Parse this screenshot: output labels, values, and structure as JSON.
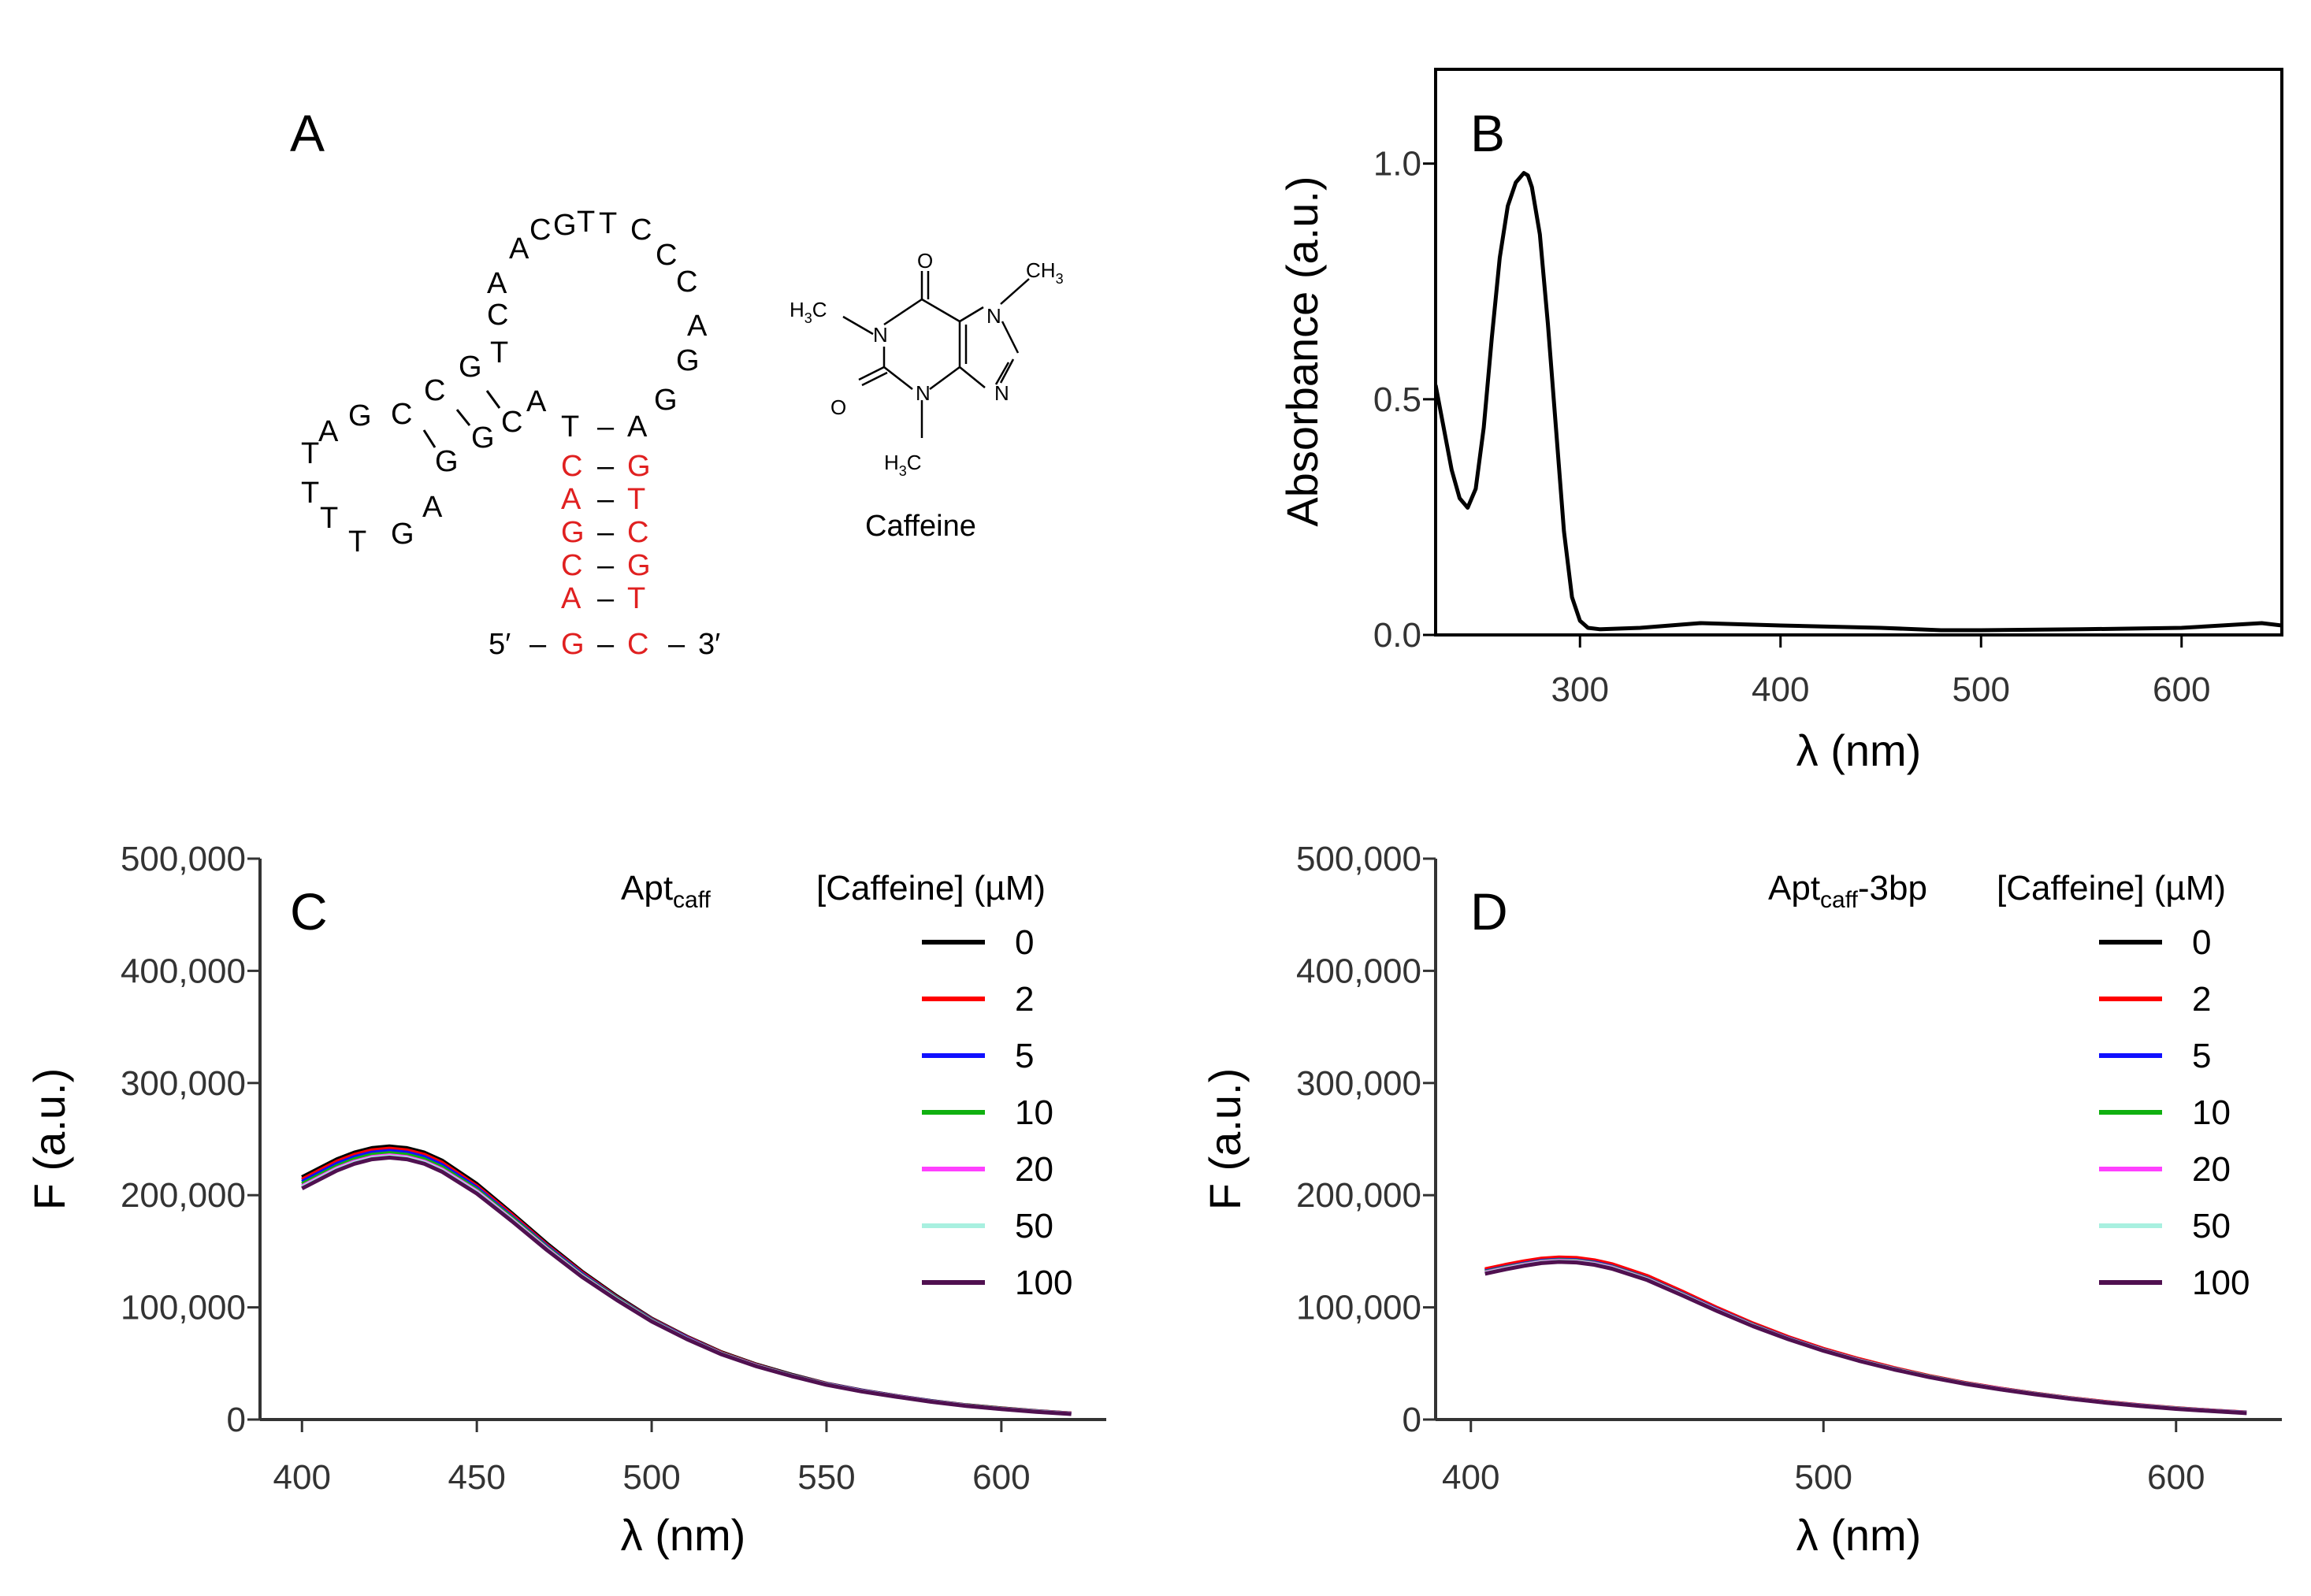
{
  "panel_labels": {
    "a": "A",
    "b": "B",
    "c": "C",
    "d": "D"
  },
  "structure": {
    "five_prime": "5′",
    "three_prime": "3′",
    "caffeine_label": "Caffeine",
    "dash": "–",
    "stem_left": [
      "T",
      "C",
      "A",
      "G",
      "C",
      "A",
      "G"
    ],
    "stem_right": [
      "A",
      "G",
      "T",
      "C",
      "G",
      "T",
      "C"
    ],
    "loop_top": [
      "A",
      "C",
      "A",
      "C",
      "G",
      "T",
      "T",
      "C",
      "C",
      "C",
      "A",
      "G",
      "G"
    ],
    "left_arm": [
      "T",
      "G",
      "C",
      "C",
      "G",
      "G",
      "C",
      "A"
    ],
    "left_loop": [
      "A",
      "G",
      "T",
      "T",
      "T",
      "T",
      "G",
      "A"
    ],
    "colors": {
      "stem": "#e02020",
      "loop": "#000000"
    }
  },
  "caffeine": {
    "atoms": {
      "n1": "N",
      "n3": "N",
      "n7": "N",
      "n9": "N",
      "o2": "O",
      "o6": "O"
    },
    "h3c_left": {
      "h": "H",
      "sub": "3",
      "c": "C"
    },
    "h3c_bottom": {
      "h": "H",
      "sub": "3",
      "c": "C"
    },
    "ch3_top": {
      "c": "CH",
      "sub": "3"
    }
  },
  "chart_data": [
    {
      "id": "B",
      "type": "line",
      "xlabel": "λ (nm)",
      "ylabel": "Absorbance (a.u.)",
      "xlim": [
        228,
        650
      ],
      "ylim": [
        0,
        1.2
      ],
      "xticks": [
        300,
        400,
        500,
        600
      ],
      "yticks": [
        0.0,
        0.5,
        1.0
      ],
      "ytick_labels": [
        "0.0",
        "0.5",
        "1.0"
      ],
      "series": [
        {
          "name": "Absorbance",
          "color": "#000000",
          "x": [
            228,
            232,
            236,
            240,
            244,
            248,
            252,
            256,
            260,
            264,
            268,
            272,
            274,
            276,
            280,
            284,
            288,
            292,
            296,
            300,
            304,
            310,
            330,
            360,
            400,
            450,
            480,
            500,
            550,
            600,
            640,
            650
          ],
          "y": [
            0.53,
            0.44,
            0.35,
            0.29,
            0.27,
            0.31,
            0.44,
            0.63,
            0.8,
            0.91,
            0.96,
            0.98,
            0.975,
            0.95,
            0.85,
            0.66,
            0.44,
            0.22,
            0.08,
            0.03,
            0.015,
            0.012,
            0.015,
            0.025,
            0.02,
            0.015,
            0.01,
            0.01,
            0.012,
            0.015,
            0.025,
            0.02
          ]
        }
      ]
    },
    {
      "id": "C",
      "type": "line",
      "xlabel": "λ (nm)",
      "ylabel": "F (a.u.)",
      "xlim": [
        388,
        630
      ],
      "ylim": [
        0,
        500000
      ],
      "xticks": [
        400,
        450,
        500,
        550,
        600
      ],
      "yticks": [
        0,
        100000,
        200000,
        300000,
        400000,
        500000
      ],
      "ytick_labels": [
        "0",
        "100,000",
        "200,000",
        "300,000",
        "400,000",
        "500,000"
      ],
      "annotation": {
        "main": "Apt",
        "sub": "caff",
        "suffix": ""
      },
      "legend_title": "[Caffeine] (µM)",
      "x": [
        400,
        405,
        410,
        415,
        420,
        425,
        430,
        435,
        440,
        450,
        460,
        470,
        480,
        490,
        500,
        510,
        520,
        530,
        540,
        550,
        560,
        570,
        580,
        590,
        600,
        610,
        620
      ],
      "series": [
        {
          "name": "0",
          "color": "#000000",
          "values": [
            216000,
            224000,
            232000,
            238000,
            242000,
            243500,
            242000,
            238000,
            231000,
            210000,
            184000,
            157000,
            132000,
            110000,
            90000,
            74000,
            60000,
            49000,
            40000,
            32000,
            26000,
            21000,
            16500,
            12800,
            10000,
            7500,
            5500
          ]
        },
        {
          "name": "2",
          "color": "#ff0000",
          "values": [
            214000,
            222000,
            230000,
            236000,
            240000,
            241500,
            240000,
            236000,
            229000,
            208000,
            182500,
            155500,
            131000,
            109000,
            89500,
            73500,
            59500,
            48500,
            39500,
            31800,
            25800,
            20800,
            16300,
            12600,
            9800,
            7400,
            5400
          ]
        },
        {
          "name": "5",
          "color": "#1010ff",
          "values": [
            212000,
            220000,
            228000,
            234000,
            238000,
            239500,
            238000,
            234000,
            227000,
            206500,
            181000,
            154500,
            130000,
            108500,
            89000,
            73000,
            59000,
            48200,
            39300,
            31600,
            25600,
            20700,
            16200,
            12500,
            9700,
            7300,
            5300
          ]
        },
        {
          "name": "10",
          "color": "#10b010",
          "values": [
            210000,
            218000,
            226000,
            232000,
            236000,
            237500,
            236000,
            232000,
            225000,
            205000,
            180000,
            153500,
            129000,
            108000,
            88500,
            72500,
            58800,
            48000,
            39100,
            31400,
            25400,
            20600,
            16100,
            12400,
            9600,
            7200,
            5200
          ]
        },
        {
          "name": "20",
          "color": "#ff40ff",
          "values": [
            208000,
            216000,
            224000,
            230000,
            234000,
            235500,
            234000,
            230000,
            223000,
            203500,
            178500,
            152500,
            128300,
            107300,
            88000,
            72200,
            58500,
            47800,
            38900,
            31200,
            25300,
            20500,
            16000,
            12300,
            9500,
            7100,
            5100
          ]
        },
        {
          "name": "50",
          "color": "#a8f0e0",
          "values": [
            207000,
            215000,
            223000,
            229000,
            233000,
            234500,
            233000,
            229000,
            222000,
            202500,
            177800,
            151800,
            127800,
            107000,
            87700,
            72000,
            58300,
            47600,
            38800,
            31100,
            25200,
            20400,
            15900,
            12200,
            9400,
            7000,
            5000
          ]
        },
        {
          "name": "100",
          "color": "#501050",
          "values": [
            206000,
            214000,
            222000,
            228000,
            232000,
            233500,
            232000,
            228000,
            221000,
            201500,
            177000,
            151200,
            127300,
            106600,
            87400,
            71800,
            58100,
            47400,
            38700,
            31000,
            25100,
            20300,
            15800,
            12100,
            9300,
            6900,
            4900
          ]
        }
      ]
    },
    {
      "id": "D",
      "type": "line",
      "xlabel": "λ (nm)",
      "ylabel": "F (a.u.)",
      "xlim": [
        390,
        630
      ],
      "ylim": [
        0,
        500000
      ],
      "xticks": [
        400,
        500,
        600
      ],
      "yticks": [
        0,
        100000,
        200000,
        300000,
        400000,
        500000
      ],
      "ytick_labels": [
        "0",
        "100,000",
        "200,000",
        "300,000",
        "400,000",
        "500,000"
      ],
      "annotation": {
        "main": "Apt",
        "sub": "caff",
        "suffix": "-3bp"
      },
      "legend_title": "[Caffeine] (µM)",
      "x": [
        404,
        410,
        415,
        420,
        425,
        430,
        435,
        440,
        450,
        460,
        470,
        480,
        490,
        500,
        510,
        520,
        530,
        540,
        550,
        560,
        570,
        580,
        590,
        600,
        610,
        620
      ],
      "series": [
        {
          "name": "0",
          "color": "#000000",
          "values": [
            133000,
            137000,
            140000,
            142500,
            143500,
            143000,
            141000,
            137500,
            127000,
            113000,
            98500,
            85000,
            73000,
            62500,
            53500,
            45500,
            38500,
            32500,
            27500,
            23000,
            19000,
            15500,
            12500,
            10000,
            8000,
            6200
          ]
        },
        {
          "name": "2",
          "color": "#ff0000",
          "values": [
            134000,
            138000,
            141000,
            143500,
            144500,
            144000,
            142000,
            138500,
            128000,
            114000,
            99300,
            85700,
            73600,
            63000,
            54000,
            45900,
            38800,
            32800,
            27700,
            23200,
            19200,
            15700,
            12700,
            10200,
            8100,
            6300
          ]
        },
        {
          "name": "5",
          "color": "#1010ff",
          "values": [
            132000,
            136000,
            139000,
            141500,
            142500,
            142000,
            140000,
            136500,
            126000,
            112200,
            97800,
            84400,
            72500,
            62100,
            53100,
            45200,
            38300,
            32300,
            27300,
            22900,
            18900,
            15400,
            12400,
            9900,
            7900,
            6100
          ]
        },
        {
          "name": "10",
          "color": "#10b010",
          "values": [
            131500,
            135500,
            138500,
            141000,
            142000,
            141500,
            139500,
            136000,
            125600,
            111800,
            97400,
            84100,
            72200,
            61900,
            53000,
            45100,
            38200,
            32200,
            27200,
            22800,
            18800,
            15300,
            12300,
            9800,
            7800,
            6000
          ]
        },
        {
          "name": "20",
          "color": "#ff40ff",
          "values": [
            131000,
            135000,
            138000,
            140500,
            141500,
            141000,
            139000,
            135500,
            125200,
            111400,
            97100,
            83800,
            72000,
            61700,
            52800,
            44900,
            38000,
            32100,
            27100,
            22700,
            18700,
            15200,
            12200,
            9700,
            7700,
            5900
          ]
        },
        {
          "name": "50",
          "color": "#a8f0e0",
          "values": [
            130500,
            134500,
            137500,
            140000,
            141000,
            140500,
            138500,
            135000,
            124800,
            111000,
            96800,
            83500,
            71800,
            61500,
            52600,
            44800,
            37900,
            32000,
            27000,
            22600,
            18600,
            15100,
            12100,
            9600,
            7600,
            5800
          ]
        },
        {
          "name": "100",
          "color": "#501050",
          "values": [
            130000,
            134000,
            137000,
            139500,
            140500,
            140000,
            138000,
            134500,
            124400,
            110600,
            96500,
            83200,
            71600,
            61300,
            52400,
            44600,
            37800,
            31900,
            26900,
            22500,
            18500,
            15000,
            12000,
            9500,
            7500,
            5700
          ]
        }
      ]
    }
  ]
}
